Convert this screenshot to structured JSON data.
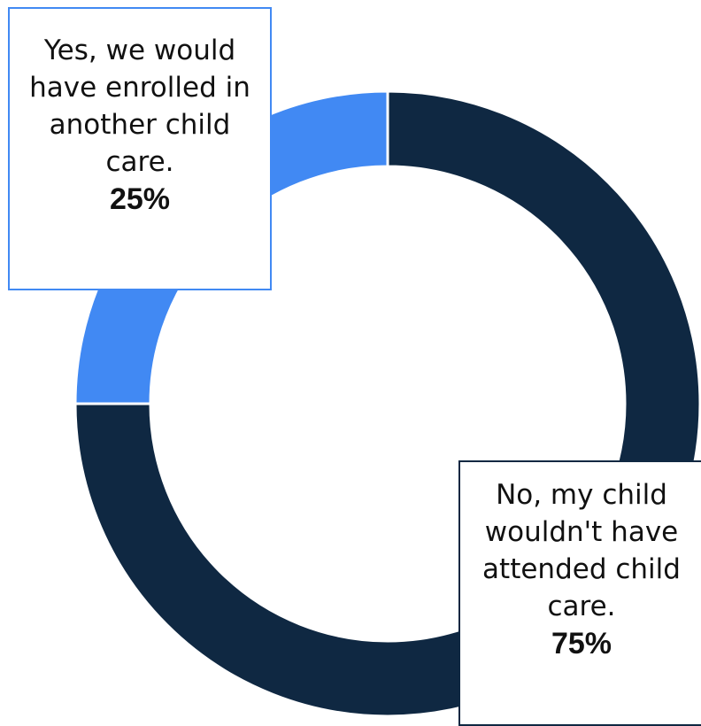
{
  "chart_data": {
    "type": "pie",
    "variant": "donut",
    "slices": [
      {
        "label": "No, my child wouldn't have attended child care.",
        "value": 75,
        "display": "75%",
        "color": "#0f2842"
      },
      {
        "label": "Yes, we would have enrolled in another child care.",
        "value": 25,
        "display": "25%",
        "color": "#4189f3"
      }
    ],
    "start_angle": "12 o'clock",
    "direction": "clockwise",
    "legend": "none"
  }
}
